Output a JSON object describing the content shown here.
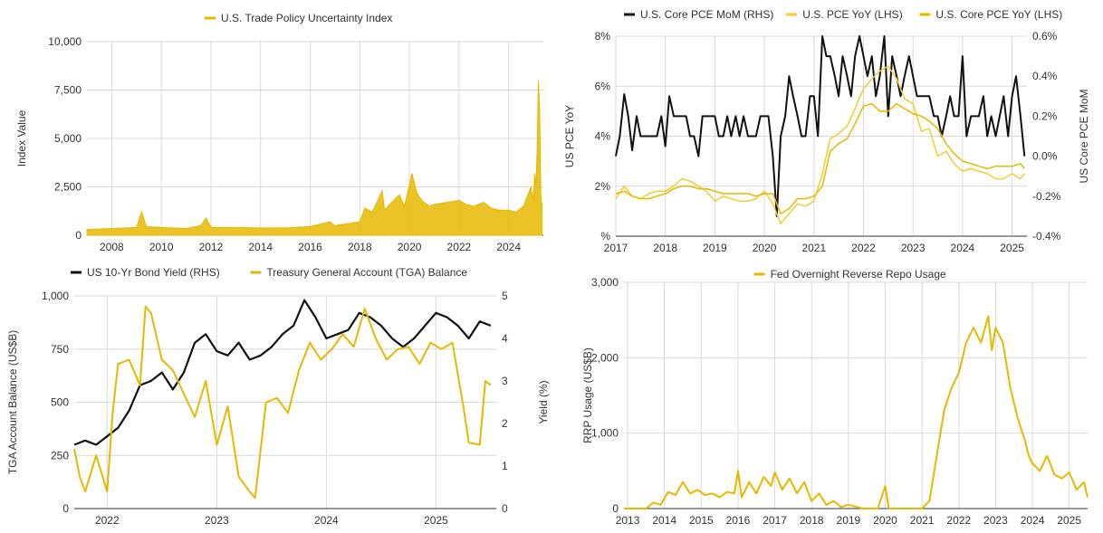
{
  "colors": {
    "black": "#111111",
    "gold": "#e6b800",
    "light_gold": "#f2cc30",
    "grid": "#d9d9d9"
  },
  "chart_data": [
    {
      "id": "tpu",
      "type": "area",
      "title": "",
      "legend": [
        "U.S. Trade Policy Uncertainty Index"
      ],
      "legend_placement": "top",
      "ylabel": "Index Value",
      "xlabel": "",
      "ylim": [
        0,
        10000
      ],
      "xlim": [
        2007.0,
        2025.4
      ],
      "yticks": [
        "0",
        "2,500",
        "5,000",
        "7,500",
        "10,000"
      ],
      "xticks": [
        "2008",
        "2010",
        "2012",
        "2014",
        "2016",
        "2018",
        "2020",
        "2022",
        "2024"
      ],
      "grid": true,
      "series": [
        {
          "name": "U.S. Trade Policy Uncertainty Index",
          "x": [
            2007.0,
            2008.0,
            2009.0,
            2009.2,
            2009.4,
            2010.0,
            2011.0,
            2011.6,
            2011.8,
            2012.0,
            2013.0,
            2014.0,
            2015.0,
            2016.0,
            2016.8,
            2017.0,
            2017.5,
            2018.0,
            2018.2,
            2018.5,
            2018.9,
            2019.0,
            2019.2,
            2019.6,
            2019.8,
            2020.0,
            2020.1,
            2020.3,
            2020.5,
            2020.8,
            2021.0,
            2021.5,
            2022.0,
            2022.3,
            2022.6,
            2023.0,
            2023.3,
            2023.6,
            2024.0,
            2024.3,
            2024.6,
            2024.9,
            2025.0,
            2025.05,
            2025.1,
            2025.15,
            2025.2,
            2025.25,
            2025.3,
            2025.35
          ],
          "y": [
            300,
            350,
            400,
            1200,
            450,
            400,
            350,
            500,
            900,
            400,
            400,
            380,
            380,
            450,
            700,
            500,
            600,
            700,
            1400,
            1200,
            2300,
            1300,
            1600,
            2100,
            1500,
            2600,
            3200,
            2200,
            1800,
            1500,
            1600,
            1700,
            1800,
            1600,
            1500,
            1700,
            1400,
            1300,
            1300,
            1200,
            1500,
            2500,
            1800,
            3200,
            2500,
            4500,
            8000,
            6500,
            2000,
            1500
          ]
        }
      ]
    },
    {
      "id": "pce",
      "type": "line",
      "title": "",
      "legend": [
        "U.S. Core PCE MoM (RHS)",
        "U.S. PCE YoY (LHS)",
        "U.S. Core PCE YoY (LHS)"
      ],
      "legend_placement": "top",
      "ylabel": "US PCE YoY",
      "y2label": "US Core PCE MoM",
      "ylim": [
        0,
        8
      ],
      "y2lim": [
        -0.4,
        0.6
      ],
      "xlim": [
        2017.0,
        2025.3
      ],
      "yticks": [
        "%",
        "2%",
        "4%",
        "6%",
        "8%"
      ],
      "y2ticks": [
        "-0.4%",
        "-0.2%",
        "0.0%",
        "0.2%",
        "0.4%",
        "0.6%"
      ],
      "xticks": [
        "2017",
        "2018",
        "2019",
        "2020",
        "2021",
        "2022",
        "2023",
        "2024",
        "2025"
      ],
      "grid": true,
      "series": [
        {
          "name": "U.S. Core PCE MoM (RHS)",
          "axis": "right",
          "x": [
            2017.0,
            2017.08,
            2017.17,
            2017.25,
            2017.33,
            2017.42,
            2017.5,
            2017.58,
            2017.67,
            2017.75,
            2017.83,
            2017.92,
            2018.0,
            2018.08,
            2018.17,
            2018.25,
            2018.33,
            2018.42,
            2018.5,
            2018.58,
            2018.67,
            2018.75,
            2018.83,
            2018.92,
            2019.0,
            2019.08,
            2019.17,
            2019.25,
            2019.33,
            2019.42,
            2019.5,
            2019.58,
            2019.67,
            2019.75,
            2019.83,
            2019.92,
            2020.0,
            2020.08,
            2020.17,
            2020.25,
            2020.33,
            2020.42,
            2020.5,
            2020.58,
            2020.67,
            2020.75,
            2020.83,
            2020.92,
            2021.0,
            2021.08,
            2021.17,
            2021.25,
            2021.33,
            2021.42,
            2021.5,
            2021.58,
            2021.67,
            2021.75,
            2021.83,
            2021.92,
            2022.0,
            2022.08,
            2022.17,
            2022.25,
            2022.33,
            2022.42,
            2022.5,
            2022.58,
            2022.67,
            2022.75,
            2022.83,
            2022.92,
            2023.0,
            2023.08,
            2023.17,
            2023.25,
            2023.33,
            2023.42,
            2023.5,
            2023.58,
            2023.67,
            2023.75,
            2023.83,
            2023.92,
            2024.0,
            2024.08,
            2024.17,
            2024.25,
            2024.33,
            2024.42,
            2024.5,
            2024.58,
            2024.67,
            2024.75,
            2024.83,
            2024.92,
            2025.0,
            2025.08,
            2025.17,
            2025.25
          ],
          "y": [
            0.0,
            0.1,
            0.31,
            0.2,
            0.03,
            0.2,
            0.1,
            0.1,
            0.1,
            0.1,
            0.1,
            0.2,
            0.05,
            0.3,
            0.2,
            0.2,
            0.2,
            0.2,
            0.1,
            0.1,
            0.0,
            0.2,
            0.2,
            0.2,
            0.2,
            0.1,
            0.1,
            0.2,
            0.1,
            0.2,
            0.1,
            0.2,
            0.1,
            0.1,
            0.1,
            0.2,
            0.2,
            0.2,
            0.0,
            -0.3,
            0.1,
            0.2,
            0.4,
            0.3,
            0.2,
            0.1,
            0.1,
            0.3,
            0.3,
            0.1,
            0.6,
            0.5,
            0.5,
            0.4,
            0.3,
            0.5,
            0.4,
            0.3,
            0.5,
            0.6,
            0.5,
            0.4,
            0.5,
            0.3,
            0.4,
            0.6,
            0.2,
            0.5,
            0.4,
            0.3,
            0.4,
            0.5,
            0.4,
            0.3,
            0.3,
            0.3,
            0.3,
            0.2,
            0.2,
            0.1,
            0.2,
            0.3,
            0.2,
            0.2,
            0.5,
            0.1,
            0.2,
            0.2,
            0.2,
            0.3,
            0.1,
            0.2,
            0.1,
            0.2,
            0.3,
            0.1,
            0.3,
            0.4,
            0.2,
            0.0
          ]
        },
        {
          "name": "U.S. PCE YoY (LHS)",
          "axis": "left",
          "x": [
            2017.0,
            2017.17,
            2017.33,
            2017.5,
            2017.67,
            2017.83,
            2018.0,
            2018.17,
            2018.33,
            2018.5,
            2018.67,
            2018.83,
            2019.0,
            2019.17,
            2019.33,
            2019.5,
            2019.67,
            2019.83,
            2020.0,
            2020.17,
            2020.33,
            2020.5,
            2020.67,
            2020.83,
            2021.0,
            2021.17,
            2021.33,
            2021.5,
            2021.67,
            2021.83,
            2022.0,
            2022.17,
            2022.33,
            2022.5,
            2022.67,
            2022.83,
            2023.0,
            2023.17,
            2023.33,
            2023.5,
            2023.67,
            2023.83,
            2024.0,
            2024.17,
            2024.33,
            2024.5,
            2024.67,
            2024.83,
            2025.0,
            2025.17,
            2025.25
          ],
          "y": [
            1.5,
            2.0,
            1.6,
            1.5,
            1.7,
            1.8,
            1.8,
            2.0,
            2.3,
            2.2,
            2.0,
            1.8,
            1.4,
            1.6,
            1.5,
            1.4,
            1.4,
            1.5,
            1.8,
            1.3,
            0.5,
            0.9,
            1.3,
            1.2,
            1.4,
            2.5,
            3.9,
            4.1,
            4.4,
            5.1,
            5.9,
            6.3,
            6.6,
            6.8,
            6.3,
            5.5,
            5.3,
            4.2,
            4.3,
            3.2,
            3.4,
            2.9,
            2.6,
            2.7,
            2.6,
            2.5,
            2.3,
            2.3,
            2.5,
            2.3,
            2.5
          ]
        },
        {
          "name": "U.S. Core PCE YoY (LHS)",
          "axis": "left",
          "x": [
            2017.0,
            2017.17,
            2017.33,
            2017.5,
            2017.67,
            2017.83,
            2018.0,
            2018.17,
            2018.33,
            2018.5,
            2018.67,
            2018.83,
            2019.0,
            2019.17,
            2019.33,
            2019.5,
            2019.67,
            2019.83,
            2020.0,
            2020.17,
            2020.33,
            2020.5,
            2020.67,
            2020.83,
            2021.0,
            2021.17,
            2021.33,
            2021.5,
            2021.67,
            2021.83,
            2022.0,
            2022.17,
            2022.33,
            2022.5,
            2022.67,
            2022.83,
            2023.0,
            2023.17,
            2023.33,
            2023.5,
            2023.67,
            2023.83,
            2024.0,
            2024.17,
            2024.33,
            2024.5,
            2024.67,
            2024.83,
            2025.0,
            2025.17,
            2025.25
          ],
          "y": [
            1.7,
            1.8,
            1.6,
            1.5,
            1.5,
            1.6,
            1.7,
            1.9,
            2.0,
            2.0,
            1.9,
            1.9,
            1.8,
            1.7,
            1.7,
            1.7,
            1.7,
            1.6,
            1.7,
            1.7,
            0.9,
            1.1,
            1.5,
            1.5,
            1.6,
            2.0,
            3.4,
            3.7,
            3.9,
            4.5,
            5.2,
            5.3,
            5.0,
            5.0,
            5.3,
            5.1,
            4.9,
            4.8,
            4.6,
            4.3,
            3.7,
            3.3,
            3.0,
            2.9,
            2.8,
            2.7,
            2.8,
            2.8,
            2.8,
            2.9,
            2.7
          ]
        }
      ]
    },
    {
      "id": "tga",
      "type": "line",
      "title": "",
      "legend": [
        "US 10-Yr  Bond Yield (RHS)",
        "Treasury General Account (TGA) Balance"
      ],
      "legend_placement": "top",
      "ylabel": "TGA Account Balance (US$B)",
      "y2label": "Yield (%)",
      "ylim": [
        0,
        1000
      ],
      "y2lim": [
        0,
        5
      ],
      "xlim": [
        2021.7,
        2025.55
      ],
      "yticks": [
        "0",
        "250",
        "500",
        "750",
        "1,000"
      ],
      "y2ticks": [
        "0",
        "1",
        "2",
        "3",
        "4",
        "5"
      ],
      "xticks": [
        "2022",
        "2023",
        "2024",
        "2025"
      ],
      "grid": true,
      "series": [
        {
          "name": "US 10-Yr  Bond Yield (RHS)",
          "axis": "right",
          "x": [
            2021.7,
            2021.8,
            2021.9,
            2022.0,
            2022.1,
            2022.2,
            2022.3,
            2022.4,
            2022.5,
            2022.6,
            2022.7,
            2022.8,
            2022.9,
            2023.0,
            2023.1,
            2023.2,
            2023.3,
            2023.4,
            2023.5,
            2023.6,
            2023.7,
            2023.8,
            2023.9,
            2024.0,
            2024.1,
            2024.2,
            2024.3,
            2024.4,
            2024.5,
            2024.6,
            2024.7,
            2024.8,
            2024.9,
            2025.0,
            2025.1,
            2025.2,
            2025.3,
            2025.4,
            2025.5
          ],
          "y": [
            1.5,
            1.6,
            1.5,
            1.7,
            1.9,
            2.3,
            2.9,
            3.0,
            3.2,
            2.8,
            3.2,
            3.9,
            4.1,
            3.7,
            3.6,
            3.9,
            3.5,
            3.6,
            3.8,
            4.1,
            4.3,
            4.9,
            4.5,
            4.0,
            4.1,
            4.2,
            4.6,
            4.5,
            4.3,
            4.0,
            3.8,
            4.0,
            4.3,
            4.6,
            4.5,
            4.3,
            4.0,
            4.4,
            4.3
          ]
        },
        {
          "name": "Treasury General Account (TGA) Balance",
          "axis": "left",
          "x": [
            2021.7,
            2021.75,
            2021.8,
            2021.9,
            2022.0,
            2022.05,
            2022.1,
            2022.2,
            2022.3,
            2022.35,
            2022.4,
            2022.5,
            2022.6,
            2022.7,
            2022.8,
            2022.9,
            2023.0,
            2023.1,
            2023.2,
            2023.3,
            2023.35,
            2023.45,
            2023.55,
            2023.65,
            2023.75,
            2023.85,
            2023.95,
            2024.05,
            2024.15,
            2024.25,
            2024.35,
            2024.45,
            2024.55,
            2024.65,
            2024.75,
            2024.85,
            2024.95,
            2025.05,
            2025.15,
            2025.25,
            2025.3,
            2025.4,
            2025.45,
            2025.5
          ],
          "y": [
            280,
            150,
            80,
            250,
            80,
            450,
            680,
            700,
            580,
            950,
            920,
            700,
            650,
            540,
            430,
            600,
            300,
            480,
            150,
            80,
            50,
            500,
            520,
            450,
            650,
            780,
            700,
            750,
            820,
            760,
            940,
            800,
            700,
            750,
            760,
            680,
            780,
            750,
            780,
            480,
            310,
            300,
            600,
            580
          ]
        }
      ]
    },
    {
      "id": "rrp",
      "type": "line",
      "title": "",
      "legend": [
        "Fed Overnight Reverse Repo Usage"
      ],
      "legend_placement": "top",
      "ylabel": "RRP Usage (US$B)",
      "xlabel": "",
      "ylim": [
        0,
        3000
      ],
      "xlim": [
        2012.9,
        2025.5
      ],
      "yticks": [
        "0",
        "1,000",
        "2,000",
        "3,000"
      ],
      "xticks": [
        "2013",
        "2014",
        "2015",
        "2016",
        "2017",
        "2018",
        "2019",
        "2020",
        "2021",
        "2022",
        "2023",
        "2024",
        "2025"
      ],
      "grid": true,
      "series": [
        {
          "name": "Fed Overnight Reverse Repo Usage",
          "x": [
            2012.9,
            2013.2,
            2013.5,
            2013.7,
            2013.9,
            2014.1,
            2014.3,
            2014.5,
            2014.7,
            2014.9,
            2015.1,
            2015.3,
            2015.5,
            2015.7,
            2015.9,
            2016.0,
            2016.1,
            2016.3,
            2016.5,
            2016.7,
            2016.9,
            2017.0,
            2017.2,
            2017.4,
            2017.6,
            2017.8,
            2018.0,
            2018.2,
            2018.4,
            2018.6,
            2018.8,
            2019.0,
            2019.4,
            2019.8,
            2020.0,
            2020.1,
            2020.3,
            2020.6,
            2021.0,
            2021.2,
            2021.4,
            2021.6,
            2021.8,
            2022.0,
            2022.2,
            2022.4,
            2022.6,
            2022.8,
            2022.9,
            2023.0,
            2023.2,
            2023.4,
            2023.6,
            2023.8,
            2023.9,
            2024.0,
            2024.2,
            2024.4,
            2024.6,
            2024.8,
            2025.0,
            2025.2,
            2025.4,
            2025.5
          ],
          "y": [
            0,
            0,
            0,
            80,
            50,
            220,
            180,
            350,
            200,
            250,
            180,
            200,
            150,
            220,
            200,
            500,
            150,
            350,
            200,
            420,
            300,
            480,
            250,
            400,
            200,
            350,
            100,
            200,
            50,
            100,
            20,
            50,
            0,
            0,
            300,
            0,
            0,
            0,
            0,
            100,
            700,
            1300,
            1600,
            1800,
            2200,
            2400,
            2200,
            2550,
            2100,
            2400,
            2200,
            1600,
            1200,
            900,
            700,
            600,
            500,
            700,
            450,
            400,
            480,
            250,
            350,
            150
          ]
        }
      ]
    }
  ]
}
